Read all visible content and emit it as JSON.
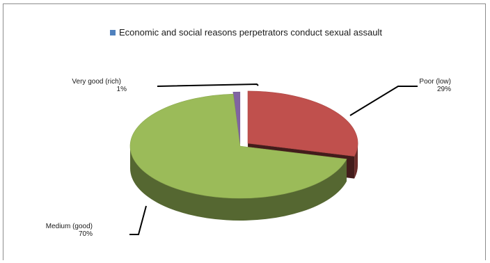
{
  "legend": {
    "label": "Economic and social reasons perpetrators conduct sexual assault",
    "color": "#4f81bd"
  },
  "chart_data": {
    "type": "pie",
    "variant": "3d-exploded",
    "title": "",
    "series_name": "Economic and social reasons perpetrators conduct sexual assault",
    "legend_position": "top",
    "slices": [
      {
        "name": "Very good (rich)",
        "label": "Very good (rich)",
        "percent_label": "1%",
        "value": 1,
        "color": "#8064a2"
      },
      {
        "name": "Poor (low)",
        "label": "Poor (low)",
        "percent_label": "29%",
        "value": 29,
        "color": "#c0504d"
      },
      {
        "name": "Medium (good)",
        "label": "Medium (good)",
        "percent_label": "70%",
        "value": 70,
        "color": "#9bbb59"
      }
    ]
  }
}
